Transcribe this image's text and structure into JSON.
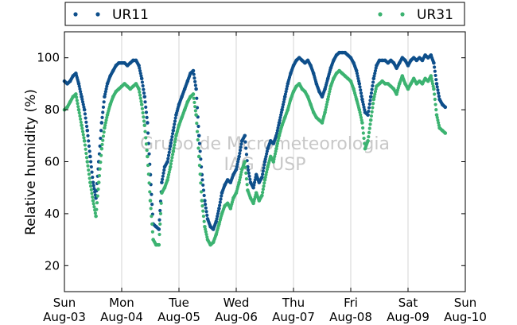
{
  "legend": {
    "items": [
      {
        "label": "UR11",
        "color": "#0e4f8b"
      },
      {
        "label": "UR31",
        "color": "#3cb371"
      }
    ]
  },
  "watermark": {
    "line1": "Grupo de Micrometeorologia",
    "line2": "IAG / USP"
  },
  "chart_data": {
    "type": "scatter",
    "title": "",
    "xlabel": "",
    "ylabel": "Relative humidity (%)",
    "xlim": [
      0,
      7
    ],
    "ylim": [
      10,
      110
    ],
    "yticks": [
      20,
      40,
      60,
      80,
      100
    ],
    "x_tick_labels": [
      {
        "x": 0,
        "day": "Sun",
        "date": "Aug-03"
      },
      {
        "x": 1,
        "day": "Mon",
        "date": "Aug-04"
      },
      {
        "x": 2,
        "day": "Tue",
        "date": "Aug-05"
      },
      {
        "x": 3,
        "day": "Wed",
        "date": "Aug-06"
      },
      {
        "x": 4,
        "day": "Thu",
        "date": "Aug-07"
      },
      {
        "x": 5,
        "day": "Fri",
        "date": "Aug-08"
      },
      {
        "x": 6,
        "day": "Sat",
        "date": "Aug-09"
      },
      {
        "x": 7,
        "day": "Sun",
        "date": "Aug-10"
      }
    ],
    "grid": "vertical",
    "legend_position": "top",
    "series": [
      {
        "name": "UR11",
        "color": "#0e4f8b",
        "points": [
          [
            0.0,
            91
          ],
          [
            0.05,
            90
          ],
          [
            0.1,
            91
          ],
          [
            0.15,
            93
          ],
          [
            0.2,
            94
          ],
          [
            0.25,
            90
          ],
          [
            0.3,
            85
          ],
          [
            0.35,
            80
          ],
          [
            0.4,
            72
          ],
          [
            0.45,
            62
          ],
          [
            0.5,
            52
          ],
          [
            0.55,
            46
          ],
          [
            0.6,
            60
          ],
          [
            0.65,
            75
          ],
          [
            0.7,
            85
          ],
          [
            0.75,
            90
          ],
          [
            0.8,
            93
          ],
          [
            0.85,
            95
          ],
          [
            0.9,
            97
          ],
          [
            0.95,
            98
          ],
          [
            1.0,
            98
          ],
          [
            1.05,
            98
          ],
          [
            1.1,
            97
          ],
          [
            1.15,
            98
          ],
          [
            1.2,
            99
          ],
          [
            1.25,
            99
          ],
          [
            1.3,
            97
          ],
          [
            1.35,
            92
          ],
          [
            1.4,
            85
          ],
          [
            1.45,
            75
          ],
          [
            1.5,
            55
          ],
          [
            1.55,
            36
          ],
          [
            1.6,
            35
          ],
          [
            1.65,
            34
          ],
          [
            1.7,
            52
          ],
          [
            1.75,
            58
          ],
          [
            1.8,
            60
          ],
          [
            1.85,
            66
          ],
          [
            1.9,
            72
          ],
          [
            1.95,
            78
          ],
          [
            2.0,
            82
          ],
          [
            2.05,
            85
          ],
          [
            2.1,
            88
          ],
          [
            2.15,
            91
          ],
          [
            2.2,
            94
          ],
          [
            2.25,
            95
          ],
          [
            2.3,
            88
          ],
          [
            2.35,
            70
          ],
          [
            2.4,
            55
          ],
          [
            2.45,
            45
          ],
          [
            2.5,
            38
          ],
          [
            2.55,
            35
          ],
          [
            2.6,
            34
          ],
          [
            2.65,
            37
          ],
          [
            2.7,
            42
          ],
          [
            2.75,
            48
          ],
          [
            2.8,
            51
          ],
          [
            2.85,
            53
          ],
          [
            2.9,
            52
          ],
          [
            2.95,
            55
          ],
          [
            3.0,
            57
          ],
          [
            3.05,
            62
          ],
          [
            3.1,
            68
          ],
          [
            3.15,
            70
          ],
          [
            3.2,
            58
          ],
          [
            3.25,
            52
          ],
          [
            3.3,
            50
          ],
          [
            3.35,
            55
          ],
          [
            3.4,
            52
          ],
          [
            3.45,
            54
          ],
          [
            3.5,
            60
          ],
          [
            3.55,
            65
          ],
          [
            3.6,
            68
          ],
          [
            3.65,
            67
          ],
          [
            3.7,
            70
          ],
          [
            3.75,
            75
          ],
          [
            3.8,
            80
          ],
          [
            3.85,
            85
          ],
          [
            3.9,
            90
          ],
          [
            3.95,
            94
          ],
          [
            4.0,
            97
          ],
          [
            4.05,
            99
          ],
          [
            4.1,
            100
          ],
          [
            4.15,
            99
          ],
          [
            4.2,
            98
          ],
          [
            4.25,
            99
          ],
          [
            4.3,
            97
          ],
          [
            4.35,
            94
          ],
          [
            4.4,
            90
          ],
          [
            4.45,
            87
          ],
          [
            4.5,
            85
          ],
          [
            4.55,
            88
          ],
          [
            4.6,
            92
          ],
          [
            4.65,
            96
          ],
          [
            4.7,
            99
          ],
          [
            4.75,
            101
          ],
          [
            4.8,
            102
          ],
          [
            4.85,
            102
          ],
          [
            4.9,
            102
          ],
          [
            4.95,
            101
          ],
          [
            5.0,
            100
          ],
          [
            5.05,
            98
          ],
          [
            5.1,
            95
          ],
          [
            5.15,
            90
          ],
          [
            5.2,
            84
          ],
          [
            5.25,
            79
          ],
          [
            5.3,
            78
          ],
          [
            5.35,
            85
          ],
          [
            5.4,
            92
          ],
          [
            5.45,
            97
          ],
          [
            5.5,
            99
          ],
          [
            5.55,
            99
          ],
          [
            5.6,
            99
          ],
          [
            5.65,
            98
          ],
          [
            5.7,
            99
          ],
          [
            5.75,
            98
          ],
          [
            5.8,
            96
          ],
          [
            5.85,
            98
          ],
          [
            5.9,
            100
          ],
          [
            5.95,
            99
          ],
          [
            6.0,
            97
          ],
          [
            6.05,
            99
          ],
          [
            6.1,
            100
          ],
          [
            6.15,
            99
          ],
          [
            6.2,
            100
          ],
          [
            6.25,
            99
          ],
          [
            6.3,
            101
          ],
          [
            6.35,
            100
          ],
          [
            6.4,
            101
          ],
          [
            6.45,
            98
          ],
          [
            6.5,
            90
          ],
          [
            6.55,
            84
          ],
          [
            6.6,
            82
          ],
          [
            6.65,
            81
          ]
        ]
      },
      {
        "name": "UR31",
        "color": "#3cb371",
        "points": [
          [
            0.0,
            80
          ],
          [
            0.05,
            81
          ],
          [
            0.1,
            83
          ],
          [
            0.15,
            85
          ],
          [
            0.2,
            86
          ],
          [
            0.25,
            80
          ],
          [
            0.3,
            74
          ],
          [
            0.35,
            68
          ],
          [
            0.4,
            60
          ],
          [
            0.45,
            52
          ],
          [
            0.5,
            45
          ],
          [
            0.55,
            39
          ],
          [
            0.6,
            52
          ],
          [
            0.65,
            65
          ],
          [
            0.7,
            73
          ],
          [
            0.75,
            78
          ],
          [
            0.8,
            82
          ],
          [
            0.85,
            85
          ],
          [
            0.9,
            87
          ],
          [
            0.95,
            88
          ],
          [
            1.0,
            89
          ],
          [
            1.05,
            90
          ],
          [
            1.1,
            89
          ],
          [
            1.15,
            88
          ],
          [
            1.2,
            89
          ],
          [
            1.25,
            90
          ],
          [
            1.3,
            88
          ],
          [
            1.35,
            82
          ],
          [
            1.4,
            74
          ],
          [
            1.45,
            62
          ],
          [
            1.5,
            45
          ],
          [
            1.55,
            30
          ],
          [
            1.6,
            28
          ],
          [
            1.65,
            28
          ],
          [
            1.7,
            48
          ],
          [
            1.75,
            50
          ],
          [
            1.8,
            53
          ],
          [
            1.85,
            58
          ],
          [
            1.9,
            64
          ],
          [
            1.95,
            70
          ],
          [
            2.0,
            74
          ],
          [
            2.05,
            77
          ],
          [
            2.1,
            80
          ],
          [
            2.15,
            83
          ],
          [
            2.2,
            85
          ],
          [
            2.25,
            86
          ],
          [
            2.3,
            78
          ],
          [
            2.35,
            62
          ],
          [
            2.4,
            45
          ],
          [
            2.45,
            35
          ],
          [
            2.5,
            30
          ],
          [
            2.55,
            28
          ],
          [
            2.6,
            29
          ],
          [
            2.65,
            32
          ],
          [
            2.7,
            36
          ],
          [
            2.75,
            40
          ],
          [
            2.8,
            43
          ],
          [
            2.85,
            44
          ],
          [
            2.9,
            42
          ],
          [
            2.95,
            46
          ],
          [
            3.0,
            48
          ],
          [
            3.05,
            52
          ],
          [
            3.1,
            57
          ],
          [
            3.15,
            60
          ],
          [
            3.2,
            49
          ],
          [
            3.25,
            46
          ],
          [
            3.3,
            44
          ],
          [
            3.35,
            48
          ],
          [
            3.4,
            45
          ],
          [
            3.45,
            47
          ],
          [
            3.5,
            53
          ],
          [
            3.55,
            58
          ],
          [
            3.6,
            62
          ],
          [
            3.65,
            60
          ],
          [
            3.7,
            65
          ],
          [
            3.75,
            70
          ],
          [
            3.8,
            74
          ],
          [
            3.85,
            77
          ],
          [
            3.9,
            80
          ],
          [
            3.95,
            84
          ],
          [
            4.0,
            87
          ],
          [
            4.05,
            89
          ],
          [
            4.1,
            90
          ],
          [
            4.15,
            88
          ],
          [
            4.2,
            87
          ],
          [
            4.25,
            85
          ],
          [
            4.3,
            82
          ],
          [
            4.35,
            79
          ],
          [
            4.4,
            77
          ],
          [
            4.45,
            76
          ],
          [
            4.5,
            75
          ],
          [
            4.55,
            79
          ],
          [
            4.6,
            84
          ],
          [
            4.65,
            89
          ],
          [
            4.7,
            92
          ],
          [
            4.75,
            94
          ],
          [
            4.8,
            95
          ],
          [
            4.85,
            94
          ],
          [
            4.9,
            93
          ],
          [
            4.95,
            92
          ],
          [
            5.0,
            91
          ],
          [
            5.05,
            88
          ],
          [
            5.1,
            84
          ],
          [
            5.15,
            80
          ],
          [
            5.2,
            75
          ],
          [
            5.25,
            65
          ],
          [
            5.3,
            68
          ],
          [
            5.35,
            76
          ],
          [
            5.4,
            84
          ],
          [
            5.45,
            89
          ],
          [
            5.5,
            90
          ],
          [
            5.55,
            91
          ],
          [
            5.6,
            90
          ],
          [
            5.65,
            90
          ],
          [
            5.7,
            89
          ],
          [
            5.75,
            88
          ],
          [
            5.8,
            86
          ],
          [
            5.85,
            90
          ],
          [
            5.9,
            93
          ],
          [
            5.95,
            90
          ],
          [
            6.0,
            88
          ],
          [
            6.05,
            90
          ],
          [
            6.1,
            92
          ],
          [
            6.15,
            90
          ],
          [
            6.2,
            91
          ],
          [
            6.25,
            90
          ],
          [
            6.3,
            92
          ],
          [
            6.35,
            91
          ],
          [
            6.4,
            93
          ],
          [
            6.45,
            88
          ],
          [
            6.5,
            78
          ],
          [
            6.55,
            73
          ],
          [
            6.6,
            72
          ],
          [
            6.65,
            71
          ]
        ]
      }
    ]
  }
}
